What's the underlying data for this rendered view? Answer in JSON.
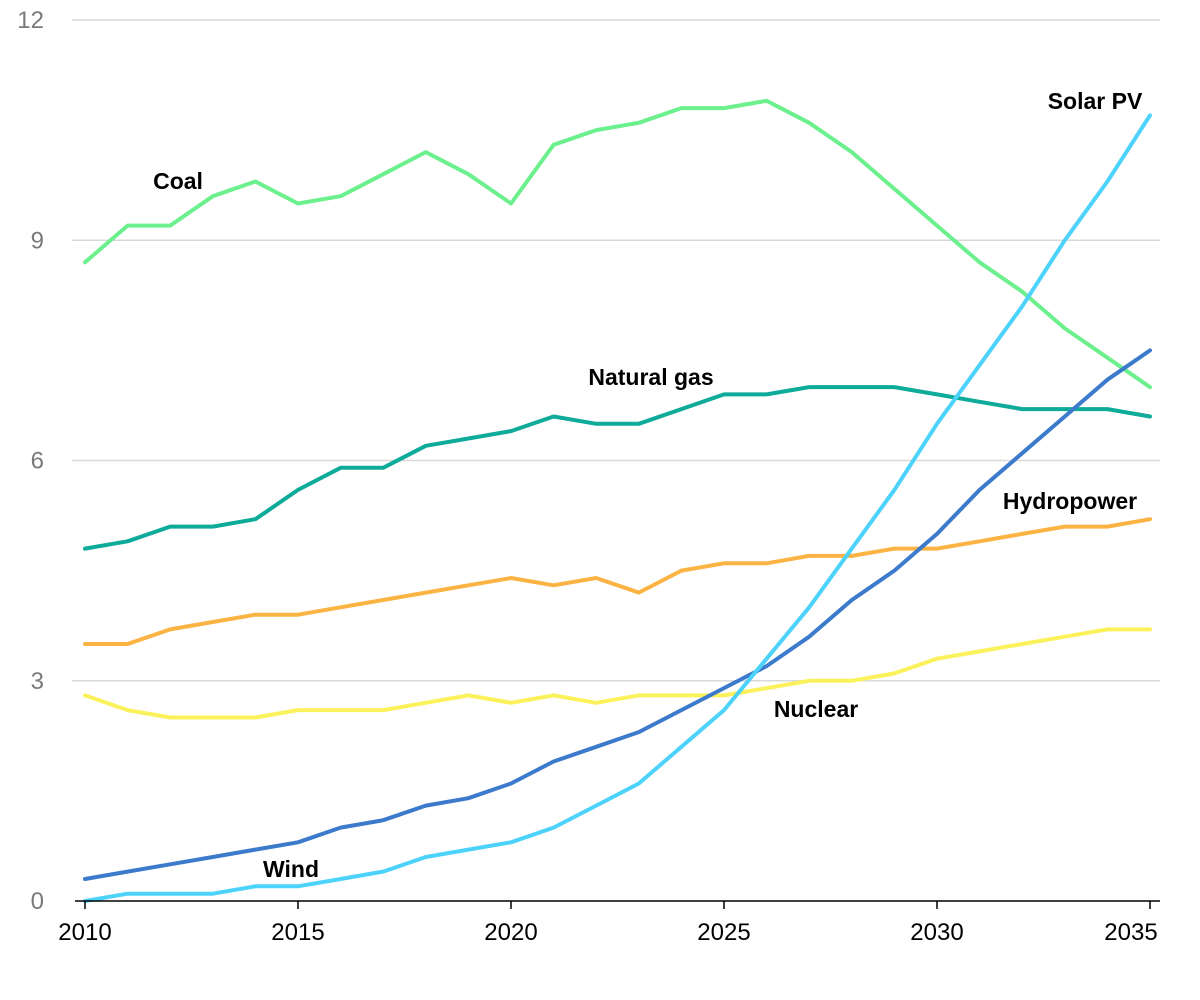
{
  "chart_data": {
    "type": "line",
    "title": "",
    "xlabel": "",
    "ylabel": "",
    "xlim": [
      2010,
      2035
    ],
    "ylim": [
      0,
      12
    ],
    "grid": true,
    "legend": "inline labels",
    "x_ticks": [
      "2010",
      "2015",
      "2020",
      "2025",
      "2030",
      "2035"
    ],
    "y_ticks": [
      "0",
      "3",
      "6",
      "9",
      "12"
    ],
    "x": [
      2010,
      2011,
      2012,
      2013,
      2014,
      2015,
      2016,
      2017,
      2018,
      2019,
      2020,
      2021,
      2022,
      2023,
      2024,
      2025,
      2026,
      2027,
      2028,
      2029,
      2030,
      2031,
      2032,
      2033,
      2034,
      2035
    ],
    "series": [
      {
        "name": "Coal",
        "color": "#6cf08d",
        "values": [
          8.7,
          9.2,
          9.2,
          9.6,
          9.8,
          9.5,
          9.6,
          9.9,
          10.2,
          9.9,
          9.5,
          10.3,
          10.5,
          10.6,
          10.8,
          10.8,
          10.9,
          10.6,
          10.2,
          9.7,
          9.2,
          8.7,
          8.3,
          7.8,
          7.4,
          7.0
        ]
      },
      {
        "name": "Natural gas",
        "color": "#0eaa9a",
        "values": [
          4.8,
          4.9,
          5.1,
          5.1,
          5.2,
          5.6,
          5.9,
          5.9,
          6.2,
          6.3,
          6.4,
          6.6,
          6.5,
          6.5,
          6.7,
          6.9,
          6.9,
          7.0,
          7.0,
          7.0,
          6.9,
          6.8,
          6.7,
          6.7,
          6.7,
          6.6
        ]
      },
      {
        "name": "Hydropower",
        "color": "#fbb344",
        "values": [
          3.5,
          3.5,
          3.7,
          3.8,
          3.9,
          3.9,
          4.0,
          4.1,
          4.2,
          4.3,
          4.4,
          4.3,
          4.4,
          4.2,
          4.5,
          4.6,
          4.6,
          4.7,
          4.7,
          4.8,
          4.8,
          4.9,
          5.0,
          5.1,
          5.1,
          5.2
        ]
      },
      {
        "name": "Nuclear",
        "color": "#fbf25b",
        "values": [
          2.8,
          2.6,
          2.5,
          2.5,
          2.5,
          2.6,
          2.6,
          2.6,
          2.7,
          2.8,
          2.7,
          2.8,
          2.7,
          2.8,
          2.8,
          2.8,
          2.9,
          3.0,
          3.0,
          3.1,
          3.3,
          3.4,
          3.5,
          3.6,
          3.7,
          3.7
        ]
      },
      {
        "name": "Wind",
        "color": "#3c7acc",
        "values": [
          0.3,
          0.4,
          0.5,
          0.6,
          0.7,
          0.8,
          1.0,
          1.1,
          1.3,
          1.4,
          1.6,
          1.9,
          2.1,
          2.3,
          2.6,
          2.9,
          3.2,
          3.6,
          4.1,
          4.5,
          5.0,
          5.6,
          6.1,
          6.6,
          7.1,
          7.5
        ]
      },
      {
        "name": "Solar PV",
        "color": "#4dd3fb",
        "values": [
          0.0,
          0.1,
          0.1,
          0.1,
          0.2,
          0.2,
          0.3,
          0.4,
          0.6,
          0.7,
          0.8,
          1.0,
          1.3,
          1.6,
          2.1,
          2.6,
          3.3,
          4.0,
          4.8,
          5.6,
          6.5,
          7.3,
          8.1,
          9.0,
          9.8,
          10.7
        ]
      }
    ]
  }
}
